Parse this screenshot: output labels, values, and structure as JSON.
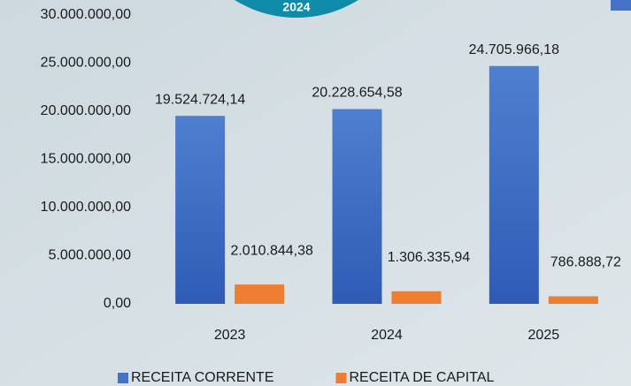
{
  "chart_data": {
    "type": "bar",
    "annotation": "2024",
    "categories": [
      "2023",
      "2024",
      "2025"
    ],
    "series": [
      {
        "name": "RECEITA CORRENTE",
        "color": "#4472c4",
        "values": [
          19524724.14,
          20228654.58,
          24705966.18
        ],
        "value_labels": [
          "19.524.724,14",
          "20.228.654,58",
          "24.705.966,18"
        ]
      },
      {
        "name": "RECEITA DE CAPITAL",
        "color": "#ed7d31",
        "values": [
          2010844.38,
          1306335.94,
          786888.72
        ],
        "value_labels": [
          "2.010.844,38",
          "1.306.335,94",
          "786.888,72"
        ]
      }
    ],
    "ylim": [
      0,
      30000000
    ],
    "yticks": [
      {
        "value": 0,
        "label": "0,00"
      },
      {
        "value": 5000000,
        "label": "5.000.000,00"
      },
      {
        "value": 10000000,
        "label": "10.000.000,00"
      },
      {
        "value": 15000000,
        "label": "15.000.000,00"
      },
      {
        "value": 20000000,
        "label": "20.000.000,00"
      },
      {
        "value": 25000000,
        "label": "25.000.000,00"
      },
      {
        "value": 30000000,
        "label": "30.000.000,00"
      }
    ],
    "grid": false,
    "legend": "bottom"
  }
}
